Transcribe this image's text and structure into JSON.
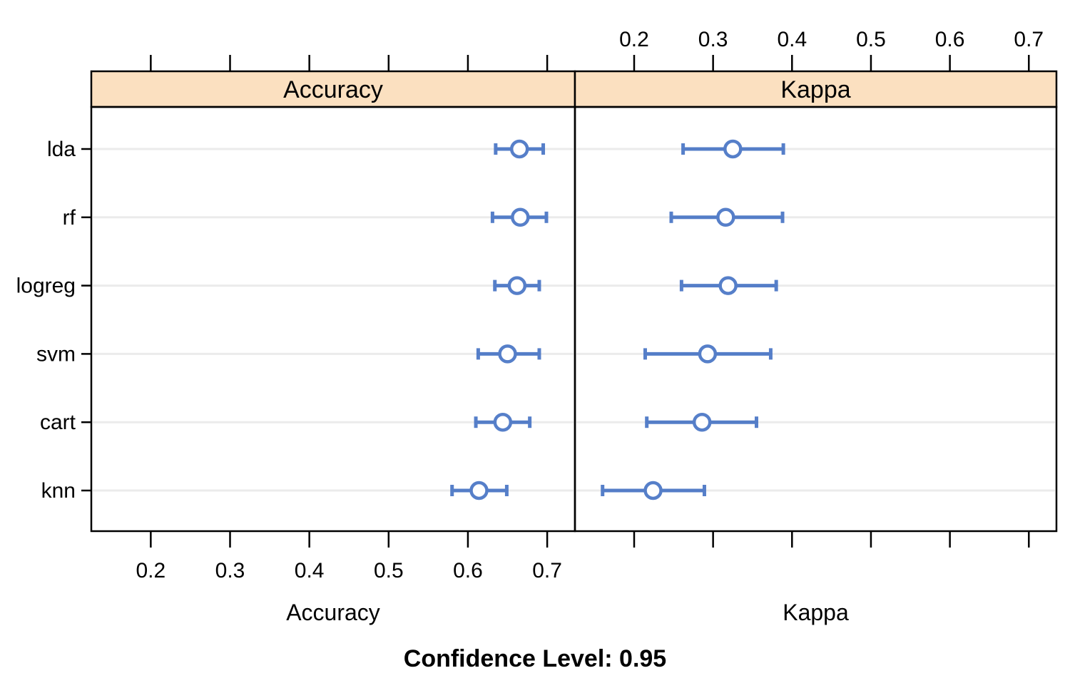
{
  "figure": {
    "footer": "Confidence Level: 0.95"
  },
  "chart_data": {
    "type": "dotplot-ci",
    "description": "Lattice-style dotplot of resampled model performance with 95% confidence intervals, two panels sharing a common x scale",
    "confidence_level": 0.95,
    "models": [
      "lda",
      "rf",
      "logreg",
      "svm",
      "cart",
      "knn"
    ],
    "axis_range": [
      0.125,
      0.735
    ],
    "tick_values": [
      0.2,
      0.3,
      0.4,
      0.5,
      0.6,
      0.7
    ],
    "tick_labels": [
      "0.2",
      "0.3",
      "0.4",
      "0.5",
      "0.6",
      "0.7"
    ],
    "legend_position": "none",
    "grid": "horizontal",
    "panels": [
      {
        "title": "Accuracy",
        "axis_label": "Accuracy",
        "top_axis_labeled": false,
        "bottom_axis_labeled": true,
        "series": [
          {
            "model": "lda",
            "mean": 0.665,
            "lower": 0.635,
            "upper": 0.695
          },
          {
            "model": "rf",
            "mean": 0.666,
            "lower": 0.631,
            "upper": 0.699
          },
          {
            "model": "logreg",
            "mean": 0.662,
            "lower": 0.634,
            "upper": 0.69
          },
          {
            "model": "svm",
            "mean": 0.65,
            "lower": 0.613,
            "upper": 0.69
          },
          {
            "model": "cart",
            "mean": 0.644,
            "lower": 0.61,
            "upper": 0.678
          },
          {
            "model": "knn",
            "mean": 0.614,
            "lower": 0.58,
            "upper": 0.649
          }
        ]
      },
      {
        "title": "Kappa",
        "axis_label": "Kappa",
        "top_axis_labeled": true,
        "bottom_axis_labeled": false,
        "series": [
          {
            "model": "lda",
            "mean": 0.325,
            "lower": 0.262,
            "upper": 0.389
          },
          {
            "model": "rf",
            "mean": 0.316,
            "lower": 0.247,
            "upper": 0.388
          },
          {
            "model": "logreg",
            "mean": 0.319,
            "lower": 0.26,
            "upper": 0.38
          },
          {
            "model": "svm",
            "mean": 0.293,
            "lower": 0.214,
            "upper": 0.373
          },
          {
            "model": "cart",
            "mean": 0.286,
            "lower": 0.216,
            "upper": 0.355
          },
          {
            "model": "knn",
            "mean": 0.224,
            "lower": 0.16,
            "upper": 0.289
          }
        ]
      }
    ],
    "colors": {
      "marker_stroke": "#4472c4",
      "errorbar": "#4472c4",
      "strip_fill": "#fbe0c0",
      "panel_border": "#000000",
      "gridline": "#ebebeb",
      "text": "#000000",
      "background": "#ffffff"
    }
  }
}
